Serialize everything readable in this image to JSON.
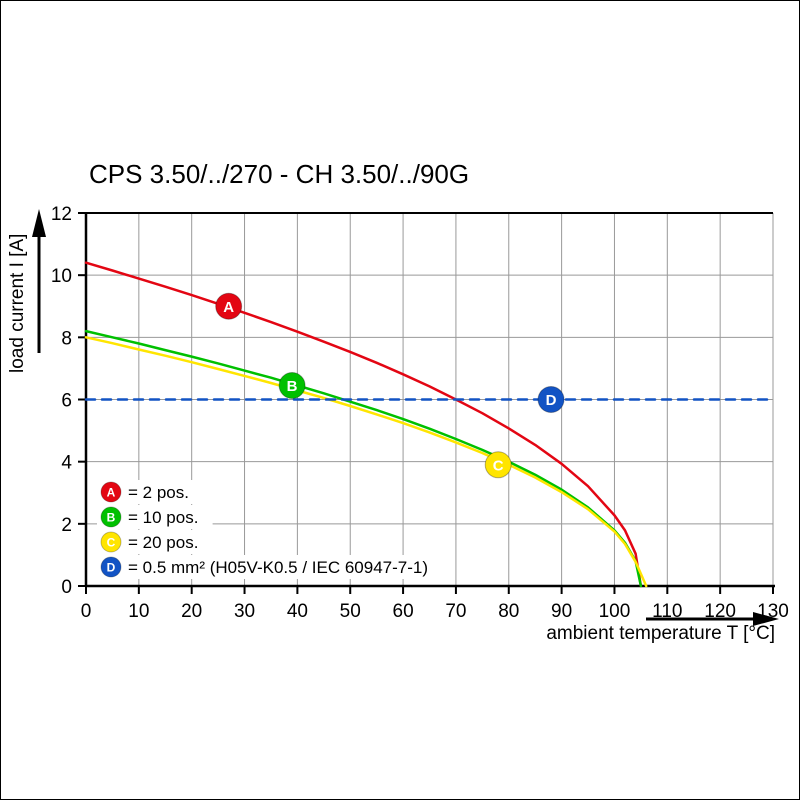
{
  "title": "CPS 3.50/../270 - CH 3.50/../90G",
  "axes": {
    "y_label": "load current I [A]",
    "x_label": "ambient temperature T [°C]"
  },
  "legend": {
    "items": [
      {
        "key": "A",
        "label": "= 2 pos."
      },
      {
        "key": "B",
        "label": "= 10 pos."
      },
      {
        "key": "C",
        "label": "= 20 pos."
      },
      {
        "key": "D",
        "label": "= 0.5 mm² (H05V-K0.5 / IEC 60947-7-1)"
      }
    ]
  },
  "colors": {
    "grid": "#999999",
    "axis": "#000000",
    "red": "#e30613",
    "green": "#00c000",
    "yellow": "#ffe500",
    "blue": "#1253c4"
  },
  "chart_data": {
    "type": "line",
    "title": "CPS 3.50/../270 - CH 3.50/../90G",
    "xlabel": "ambient temperature T [°C]",
    "ylabel": "load current I [A]",
    "xlim": [
      0,
      130
    ],
    "ylim": [
      0,
      12
    ],
    "x_ticks": [
      0,
      10,
      20,
      30,
      40,
      50,
      60,
      70,
      80,
      90,
      100,
      110,
      120,
      130
    ],
    "y_ticks": [
      0,
      2,
      4,
      6,
      8,
      10,
      12
    ],
    "grid": true,
    "legend_position": "lower-left-inside",
    "series": [
      {
        "name": "A",
        "label": "= 2 pos.",
        "color": "#e30613",
        "style": "solid",
        "marker": {
          "x": 27,
          "y": 9.0
        },
        "points": [
          [
            0,
            10.4
          ],
          [
            5,
            10.15
          ],
          [
            10,
            9.89
          ],
          [
            15,
            9.63
          ],
          [
            20,
            9.36
          ],
          [
            25,
            9.08
          ],
          [
            30,
            8.79
          ],
          [
            35,
            8.49
          ],
          [
            40,
            8.18
          ],
          [
            45,
            7.86
          ],
          [
            50,
            7.53
          ],
          [
            55,
            7.18
          ],
          [
            60,
            6.81
          ],
          [
            65,
            6.42
          ],
          [
            70,
            6.0
          ],
          [
            75,
            5.56
          ],
          [
            80,
            5.07
          ],
          [
            85,
            4.54
          ],
          [
            90,
            3.93
          ],
          [
            95,
            3.21
          ],
          [
            100,
            2.27
          ],
          [
            102,
            1.79
          ],
          [
            104,
            1.04
          ],
          [
            105,
            0
          ]
        ]
      },
      {
        "name": "B",
        "label": "= 10 pos.",
        "color": "#00c000",
        "style": "solid",
        "marker": {
          "x": 39,
          "y": 6.45
        },
        "points": [
          [
            0,
            8.2
          ],
          [
            5,
            8.0
          ],
          [
            10,
            7.8
          ],
          [
            15,
            7.59
          ],
          [
            20,
            7.38
          ],
          [
            25,
            7.16
          ],
          [
            30,
            6.93
          ],
          [
            35,
            6.7
          ],
          [
            40,
            6.45
          ],
          [
            45,
            6.2
          ],
          [
            50,
            5.93
          ],
          [
            55,
            5.66
          ],
          [
            60,
            5.37
          ],
          [
            65,
            5.06
          ],
          [
            70,
            4.73
          ],
          [
            75,
            4.38
          ],
          [
            80,
            4.0
          ],
          [
            85,
            3.58
          ],
          [
            90,
            3.1
          ],
          [
            95,
            2.53
          ],
          [
            100,
            1.79
          ],
          [
            102,
            1.39
          ],
          [
            104,
            0.8
          ],
          [
            105,
            0
          ]
        ]
      },
      {
        "name": "C",
        "label": "= 20 pos.",
        "color": "#ffe500",
        "style": "solid",
        "marker": {
          "x": 78,
          "y": 3.9
        },
        "points": [
          [
            0,
            8.0
          ],
          [
            5,
            7.81
          ],
          [
            10,
            7.61
          ],
          [
            15,
            7.41
          ],
          [
            20,
            7.2
          ],
          [
            25,
            6.98
          ],
          [
            30,
            6.76
          ],
          [
            35,
            6.53
          ],
          [
            40,
            6.29
          ],
          [
            45,
            6.05
          ],
          [
            50,
            5.79
          ],
          [
            55,
            5.52
          ],
          [
            60,
            5.24
          ],
          [
            65,
            4.94
          ],
          [
            70,
            4.62
          ],
          [
            75,
            4.28
          ],
          [
            80,
            3.9
          ],
          [
            85,
            3.49
          ],
          [
            90,
            3.02
          ],
          [
            95,
            2.47
          ],
          [
            100,
            1.75
          ],
          [
            102,
            1.35
          ],
          [
            104,
            0.78
          ],
          [
            106,
            0
          ]
        ]
      },
      {
        "name": "D",
        "label": "= 0.5 mm² (H05V-K0.5 / IEC 60947-7-1)",
        "color": "#1253c4",
        "style": "dashed",
        "marker": {
          "x": 88,
          "y": 6.0
        },
        "points": [
          [
            0,
            6
          ],
          [
            130,
            6
          ]
        ]
      }
    ]
  }
}
